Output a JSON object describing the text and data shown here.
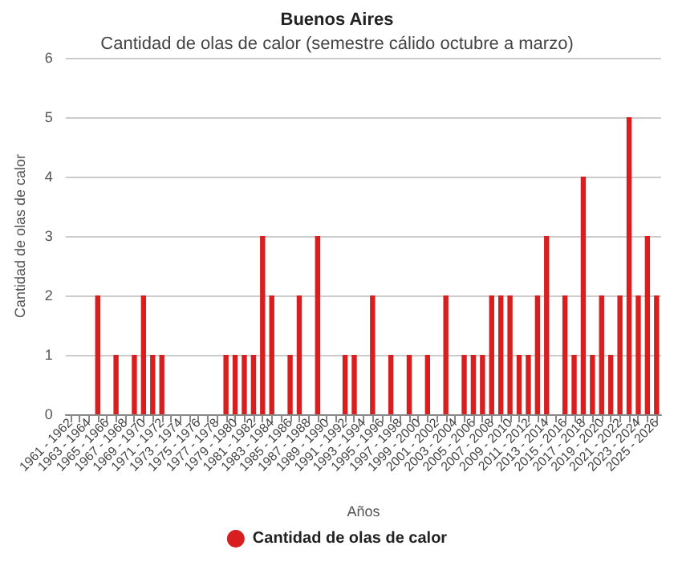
{
  "chart_data": {
    "type": "bar",
    "title": "Buenos Aires",
    "subtitle": "Cantidad de olas de calor (semestre cálido octubre a marzo)",
    "xlabel": "Años",
    "ylabel": "Cantidad de olas de calor",
    "categories": [
      "1961 - 1962",
      null,
      "1963 - 1964",
      null,
      "1965 - 1966",
      null,
      "1967 - 1968",
      null,
      "1969 - 1970",
      null,
      "1971 - 1972",
      null,
      "1973 - 1974",
      null,
      "1975 - 1976",
      null,
      "1977 - 1978",
      null,
      "1979 - 1980",
      null,
      "1981 - 1982",
      null,
      "1983 - 1984",
      null,
      "1985 - 1986",
      null,
      "1987 - 1988",
      null,
      "1989 - 1990",
      null,
      "1991 - 1992",
      null,
      "1993 - 1994",
      null,
      "1995 - 1996",
      null,
      "1997 - 1998",
      null,
      "1999 - 2000",
      null,
      "2001 - 2002",
      null,
      "2003 - 2004",
      null,
      "2005 - 2006",
      null,
      "2007 - 2008",
      null,
      "2009 - 2010",
      null,
      "2011 - 2012",
      null,
      "2013 - 2014",
      null,
      "2015 - 2016",
      null,
      "2017 - 2018",
      null,
      "2019 - 2020",
      null,
      "2021 - 2022",
      null,
      "2023 - 2024",
      null,
      "2025 - 2026"
    ],
    "series": [
      {
        "name": "Cantidad de olas de calor",
        "color": "#d81e1e",
        "values": [
          0,
          0,
          0,
          2,
          0,
          1,
          0,
          1,
          2,
          1,
          1,
          0,
          0,
          0,
          0,
          0,
          0,
          1,
          1,
          1,
          1,
          3,
          2,
          0,
          1,
          2,
          0,
          3,
          0,
          0,
          1,
          1,
          0,
          2,
          0,
          1,
          0,
          1,
          0,
          1,
          0,
          2,
          0,
          1,
          1,
          1,
          2,
          2,
          2,
          1,
          1,
          2,
          3,
          0,
          2,
          1,
          4,
          1,
          2,
          1,
          2,
          5,
          2,
          3,
          2
        ]
      }
    ],
    "ylim": [
      0,
      6
    ],
    "yticks": [
      0,
      1,
      2,
      3,
      4,
      5,
      6
    ],
    "grid": "y",
    "legend": "bottom"
  }
}
